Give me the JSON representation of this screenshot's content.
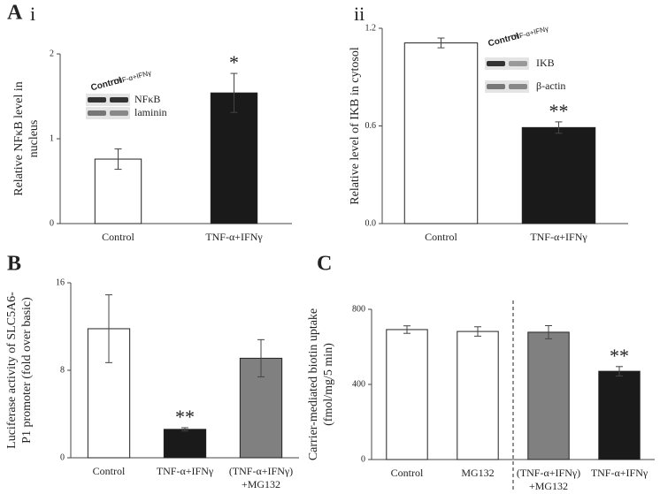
{
  "section_label": "A",
  "chart_data": [
    {
      "type": "bar",
      "label": "i",
      "ylabel": [
        "Relative NFκB level in",
        "nucleus"
      ],
      "categories": [
        "Control",
        "TNF-α+IFNγ"
      ],
      "values": [
        0.76,
        1.54
      ],
      "errors": [
        0.12,
        0.23
      ],
      "colors": [
        "#ffffff",
        "#1a1a1a"
      ],
      "stars": [
        null,
        "*"
      ],
      "ylim": [
        0,
        2
      ],
      "yticks": [
        0,
        1,
        2
      ],
      "inset": {
        "columns": [
          "Control",
          "TNF-α+IFNγ"
        ],
        "bands": [
          "NFκB",
          "laminin"
        ]
      }
    },
    {
      "type": "bar",
      "label": "ii",
      "ylabel": [
        "Relative level of IKB in cytosol"
      ],
      "categories": [
        "Control",
        "TNF-α+IFNγ"
      ],
      "values": [
        1.11,
        0.59
      ],
      "errors": [
        0.03,
        0.035
      ],
      "colors": [
        "#ffffff",
        "#1a1a1a"
      ],
      "stars": [
        null,
        "**"
      ],
      "ylim": [
        0,
        1.2
      ],
      "yticks": [
        {
          "value": 0,
          "label": "0.0"
        },
        0.6,
        1.2
      ],
      "inset": {
        "columns": [
          "Control",
          "TNF-α+IFNγ"
        ],
        "bands": [
          "IKB",
          "β-actin"
        ]
      }
    },
    {
      "type": "bar",
      "label": "B",
      "ylabel": [
        "Luciferase activity of SLC5A6-",
        "P1 promoter (fold over basic)"
      ],
      "categories": [
        [
          "Control"
        ],
        [
          "TNF-α+IFNγ"
        ],
        [
          "(TNF-α+IFNγ)",
          "+MG132"
        ]
      ],
      "values": [
        11.8,
        2.6,
        9.1
      ],
      "errors": [
        3.1,
        0.15,
        1.7
      ],
      "colors": [
        "#ffffff",
        "#1a1a1a",
        "#808080"
      ],
      "stars": [
        null,
        "**",
        null
      ],
      "ylim": [
        0,
        16
      ],
      "yticks": [
        0,
        8,
        16
      ]
    },
    {
      "type": "bar",
      "label": "C",
      "ylabel": [
        "Carrier-mediated biotin uptake",
        "(fmol/mg/5 min)"
      ],
      "categories": [
        [
          "Control"
        ],
        [
          "MG132"
        ],
        [
          "(TNF-α+IFNγ)",
          "+MG132"
        ],
        [
          "TNF-α+IFNγ"
        ]
      ],
      "values": [
        692,
        682,
        678,
        470
      ],
      "errors": [
        20,
        25,
        35,
        25
      ],
      "colors": [
        "#ffffff",
        "#ffffff",
        "#808080",
        "#1a1a1a"
      ],
      "stars": [
        null,
        null,
        null,
        "**"
      ],
      "ylim": [
        0,
        800
      ],
      "yticks": [
        0,
        400,
        800
      ],
      "divider": true
    }
  ]
}
